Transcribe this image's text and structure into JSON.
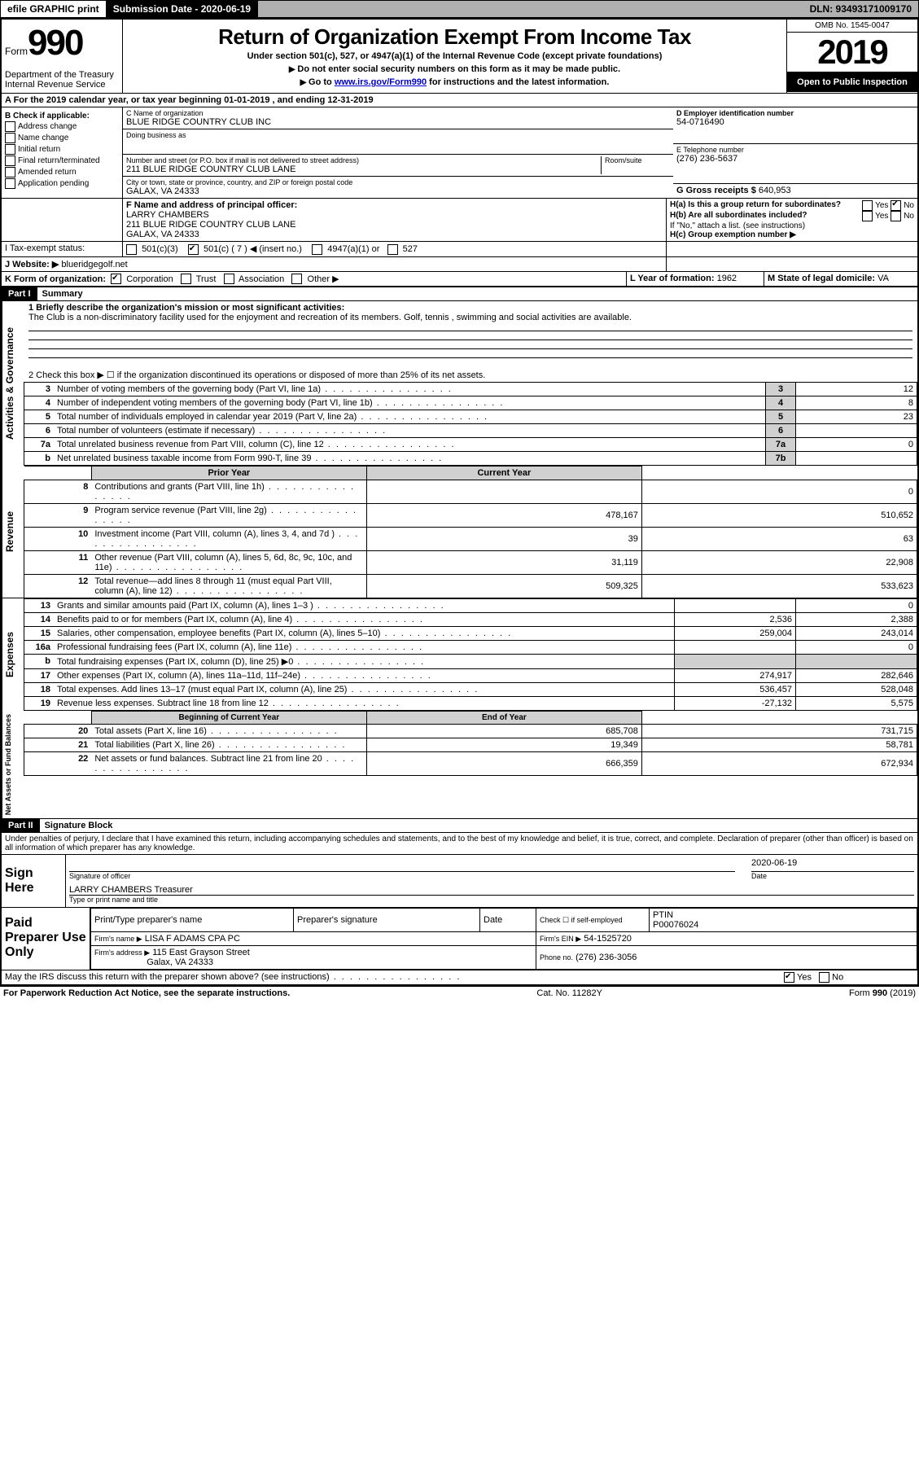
{
  "topbar": {
    "efile": "efile GRAPHIC print",
    "submission_label": "Submission Date - 2020-06-19",
    "dln": "DLN: 93493171009170"
  },
  "header": {
    "form_word": "Form",
    "form_number": "990",
    "dept1": "Department of the Treasury",
    "dept2": "Internal Revenue Service",
    "title": "Return of Organization Exempt From Income Tax",
    "subtitle": "Under section 501(c), 527, or 4947(a)(1) of the Internal Revenue Code (except private foundations)",
    "note1": "Do not enter social security numbers on this form as it may be made public.",
    "note2_a": "Go to ",
    "note2_link": "www.irs.gov/Form990",
    "note2_b": " for instructions and the latest information.",
    "omb": "OMB No. 1545-0047",
    "year": "2019",
    "open": "Open to Public Inspection"
  },
  "line_A": "A  For the 2019 calendar year, or tax year beginning 01-01-2019   , and ending 12-31-2019",
  "section_B": {
    "label": "B Check if applicable:",
    "opts": [
      "Address change",
      "Name change",
      "Initial return",
      "Final return/terminated",
      "Amended return",
      "Application pending"
    ]
  },
  "section_C": {
    "name_label": "C Name of organization",
    "name": "BLUE RIDGE COUNTRY CLUB INC",
    "dba_label": "Doing business as",
    "dba": "",
    "addr_label": "Number and street (or P.O. box if mail is not delivered to street address)",
    "room_label": "Room/suite",
    "addr": "211 BLUE RIDGE COUNTRY CLUB LANE",
    "city_label": "City or town, state or province, country, and ZIP or foreign postal code",
    "city": "GALAX, VA  24333"
  },
  "section_D": {
    "label": "D Employer identification number",
    "value": "54-0716490"
  },
  "section_E": {
    "label": "E Telephone number",
    "value": "(276) 236-5637"
  },
  "section_G": {
    "label": "G Gross receipts $",
    "value": "640,953"
  },
  "section_F": {
    "label": "F  Name and address of principal officer:",
    "name": "LARRY CHAMBERS",
    "addr1": "211 BLUE RIDGE COUNTRY CLUB LANE",
    "addr2": "GALAX, VA  24333"
  },
  "section_H": {
    "a": "H(a)  Is this a group return for subordinates?",
    "b": "H(b)  Are all subordinates included?",
    "b_note": "If \"No,\" attach a list. (see instructions)",
    "c": "H(c)  Group exemption number ▶",
    "yes": "Yes",
    "no": "No"
  },
  "section_I": {
    "label": "I   Tax-exempt status:",
    "opts": [
      "501(c)(3)",
      "501(c) ( 7 ) ◀ (insert no.)",
      "4947(a)(1) or",
      "527"
    ]
  },
  "section_J": {
    "label": "J   Website: ▶",
    "value": "blueridgegolf.net"
  },
  "section_K": {
    "label": "K Form of organization:",
    "opts": [
      "Corporation",
      "Trust",
      "Association",
      "Other ▶"
    ]
  },
  "section_L": {
    "label": "L Year of formation:",
    "value": "1962"
  },
  "section_M": {
    "label": "M State of legal domicile:",
    "value": "VA"
  },
  "part1": {
    "header": "Part I",
    "title": "Summary",
    "line1_label": "1  Briefly describe the organization's mission or most significant activities:",
    "line1_text": "The Club is a non-discriminatory facility used for the enjoyment and recreation of its members. Golf, tennis , swimming and social activities are available.",
    "line2_label": "2   Check this box ▶ ☐  if the organization discontinued its operations or disposed of more than 25% of its net assets.",
    "lines_gov": [
      {
        "n": "3",
        "t": "Number of voting members of the governing body (Part VI, line 1a)",
        "c": "3",
        "v": "12"
      },
      {
        "n": "4",
        "t": "Number of independent voting members of the governing body (Part VI, line 1b)",
        "c": "4",
        "v": "8"
      },
      {
        "n": "5",
        "t": "Total number of individuals employed in calendar year 2019 (Part V, line 2a)",
        "c": "5",
        "v": "23"
      },
      {
        "n": "6",
        "t": "Total number of volunteers (estimate if necessary)",
        "c": "6",
        "v": ""
      },
      {
        "n": "7a",
        "t": "Total unrelated business revenue from Part VIII, column (C), line 12",
        "c": "7a",
        "v": "0"
      },
      {
        "n": "b",
        "t": "Net unrelated business taxable income from Form 990-T, line 39",
        "c": "7b",
        "v": ""
      }
    ],
    "col_headers": {
      "prior": "Prior Year",
      "current": "Current Year"
    },
    "revenue": [
      {
        "n": "8",
        "t": "Contributions and grants (Part VIII, line 1h)",
        "p": "",
        "c": "0"
      },
      {
        "n": "9",
        "t": "Program service revenue (Part VIII, line 2g)",
        "p": "478,167",
        "c": "510,652"
      },
      {
        "n": "10",
        "t": "Investment income (Part VIII, column (A), lines 3, 4, and 7d )",
        "p": "39",
        "c": "63"
      },
      {
        "n": "11",
        "t": "Other revenue (Part VIII, column (A), lines 5, 6d, 8c, 9c, 10c, and 11e)",
        "p": "31,119",
        "c": "22,908"
      },
      {
        "n": "12",
        "t": "Total revenue—add lines 8 through 11 (must equal Part VIII, column (A), line 12)",
        "p": "509,325",
        "c": "533,623"
      }
    ],
    "expenses": [
      {
        "n": "13",
        "t": "Grants and similar amounts paid (Part IX, column (A), lines 1–3 )",
        "p": "",
        "c": "0"
      },
      {
        "n": "14",
        "t": "Benefits paid to or for members (Part IX, column (A), line 4)",
        "p": "2,536",
        "c": "2,388"
      },
      {
        "n": "15",
        "t": "Salaries, other compensation, employee benefits (Part IX, column (A), lines 5–10)",
        "p": "259,004",
        "c": "243,014"
      },
      {
        "n": "16a",
        "t": "Professional fundraising fees (Part IX, column (A), line 11e)",
        "p": "",
        "c": "0"
      },
      {
        "n": "b",
        "t": "Total fundraising expenses (Part IX, column (D), line 25) ▶0",
        "p": "__shade__",
        "c": "__shade__"
      },
      {
        "n": "17",
        "t": "Other expenses (Part IX, column (A), lines 11a–11d, 11f–24e)",
        "p": "274,917",
        "c": "282,646"
      },
      {
        "n": "18",
        "t": "Total expenses. Add lines 13–17 (must equal Part IX, column (A), line 25)",
        "p": "536,457",
        "c": "528,048"
      },
      {
        "n": "19",
        "t": "Revenue less expenses. Subtract line 18 from line 12",
        "p": "-27,132",
        "c": "5,575"
      }
    ],
    "net_headers": {
      "begin": "Beginning of Current Year",
      "end": "End of Year"
    },
    "net": [
      {
        "n": "20",
        "t": "Total assets (Part X, line 16)",
        "p": "685,708",
        "c": "731,715"
      },
      {
        "n": "21",
        "t": "Total liabilities (Part X, line 26)",
        "p": "19,349",
        "c": "58,781"
      },
      {
        "n": "22",
        "t": "Net assets or fund balances. Subtract line 21 from line 20",
        "p": "666,359",
        "c": "672,934"
      }
    ]
  },
  "part2": {
    "header": "Part II",
    "title": "Signature Block",
    "declaration": "Under penalties of perjury, I declare that I have examined this return, including accompanying schedules and statements, and to the best of my knowledge and belief, it is true, correct, and complete. Declaration of preparer (other than officer) is based on all information of which preparer has any knowledge.",
    "sign_here": "Sign Here",
    "sig_officer": "Signature of officer",
    "sig_date": "Date",
    "sig_date_val": "2020-06-19",
    "type_name": "Type or print name and title",
    "officer_name": "LARRY CHAMBERS  Treasurer",
    "paid": "Paid Preparer Use Only",
    "prep_name_label": "Print/Type preparer's name",
    "prep_sig_label": "Preparer's signature",
    "prep_date_label": "Date",
    "check_self": "Check ☐ if self-employed",
    "ptin_label": "PTIN",
    "ptin": "P00076024",
    "firm_name_label": "Firm's name   ▶",
    "firm_name": "LISA F ADAMS CPA PC",
    "firm_ein_label": "Firm's EIN ▶",
    "firm_ein": "54-1525720",
    "firm_addr_label": "Firm's address ▶",
    "firm_addr1": "115 East Grayson Street",
    "firm_addr2": "Galax, VA  24333",
    "phone_label": "Phone no.",
    "phone": "(276) 236-3056",
    "discuss": "May the IRS discuss this return with the preparer shown above? (see instructions)",
    "yes": "Yes",
    "no": "No"
  },
  "footer": {
    "left": "For Paperwork Reduction Act Notice, see the separate instructions.",
    "mid": "Cat. No. 11282Y",
    "right": "Form 990 (2019)"
  },
  "sides": {
    "gov": "Activities & Governance",
    "rev": "Revenue",
    "exp": "Expenses",
    "net": "Net Assets or Fund Balances"
  }
}
